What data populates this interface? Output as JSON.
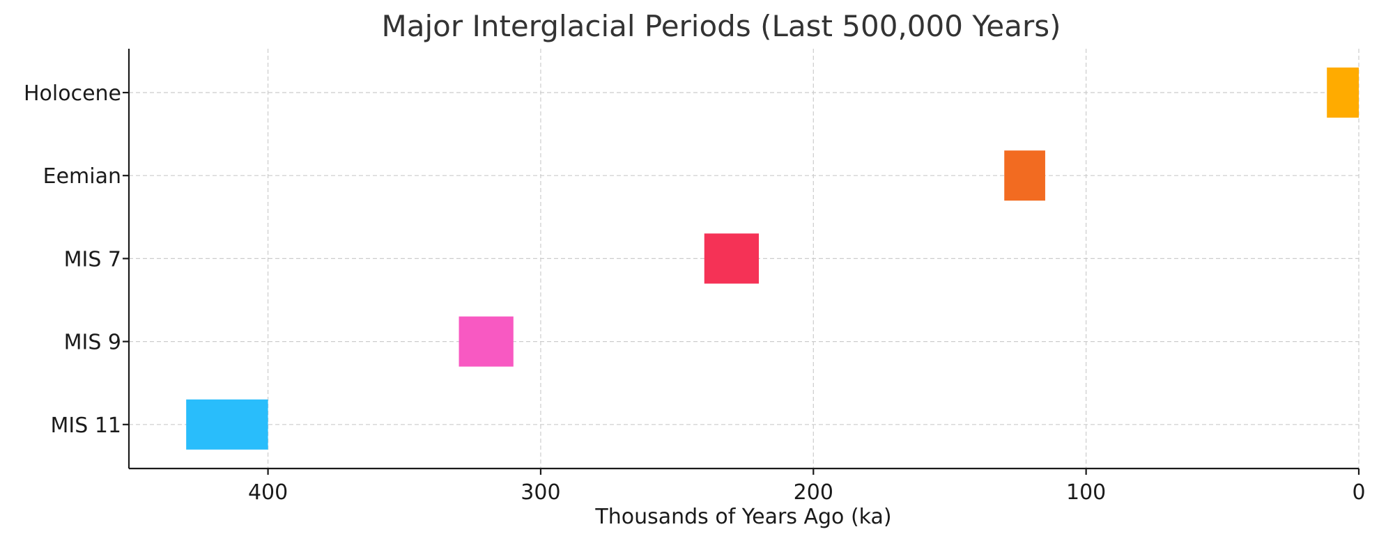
{
  "chart_data": {
    "type": "bar",
    "orientation": "horizontal-range",
    "title": "Major Interglacial Periods (Last 500,000 Years)",
    "xlabel": "Thousands of Years Ago (ka)",
    "ylabel": "",
    "xlim": [
      451,
      0
    ],
    "x_inverted": true,
    "x_ticks": [
      400,
      300,
      200,
      100,
      0
    ],
    "grid": true,
    "categories": [
      "MIS 11",
      "MIS 9",
      "MIS 7",
      "Eemian",
      "Holocene"
    ],
    "ranges": [
      {
        "label": "MIS 11",
        "start": 430,
        "end": 400,
        "color": "#29BDFB"
      },
      {
        "label": "MIS 9",
        "start": 330,
        "end": 310,
        "color": "#F859C2"
      },
      {
        "label": "MIS 7",
        "start": 240,
        "end": 220,
        "color": "#F53256"
      },
      {
        "label": "Eemian",
        "start": 130,
        "end": 115,
        "color": "#F26B21"
      },
      {
        "label": "Holocene",
        "start": 11.7,
        "end": 0,
        "color": "#FFAB00"
      }
    ]
  }
}
